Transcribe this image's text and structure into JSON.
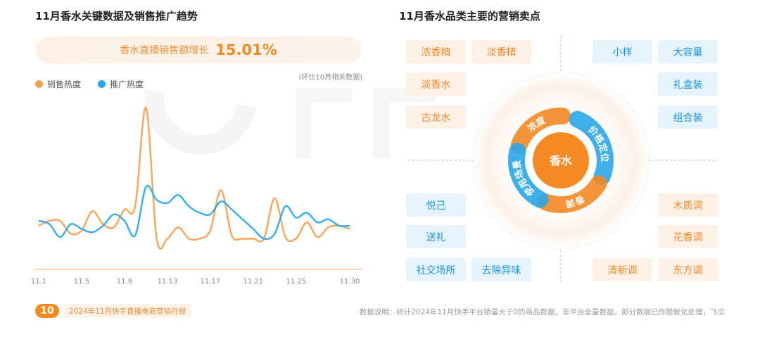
{
  "left": {
    "title": "11月香水关键数据及销售推广趋势",
    "banner": {
      "label": "香水直播销售额增长",
      "value": "15.01%"
    },
    "note": "(环比10月相关数据)"
  },
  "chart_data": {
    "type": "line",
    "title": "",
    "xlabel": "",
    "ylabel": "",
    "x": [
      "11.1",
      "11.2",
      "11.3",
      "11.4",
      "11.5",
      "11.6",
      "11.7",
      "11.8",
      "11.9",
      "11.10",
      "11.11",
      "11.12",
      "11.13",
      "11.14",
      "11.15",
      "11.16",
      "11.17",
      "11.18",
      "11.19",
      "11.20",
      "11.21",
      "11.22",
      "11.23",
      "11.24",
      "11.25",
      "11.26",
      "11.27",
      "11.28",
      "11.29",
      "11.30"
    ],
    "xticks": [
      "11.1",
      "11.5",
      "11.9",
      "11.13",
      "11.17",
      "11.21",
      "11.25",
      "11.30"
    ],
    "ylim": [
      0,
      100
    ],
    "grid": false,
    "legend_placement": "top-left",
    "series": [
      {
        "name": "销售热度",
        "color": "#f5a04a",
        "values": [
          27,
          30,
          30,
          22,
          24,
          36,
          28,
          26,
          37,
          39,
          100,
          19,
          19,
          26,
          19,
          19,
          24,
          49,
          21,
          19,
          19,
          19,
          44,
          20,
          19,
          29,
          20,
          26,
          27,
          25
        ]
      },
      {
        "name": "推广热度",
        "color": "#2aa6e8",
        "values": [
          30,
          28,
          20,
          28,
          25,
          23,
          27,
          34,
          30,
          21,
          51,
          43,
          41,
          46,
          39,
          35,
          34,
          42,
          37,
          31,
          25,
          19,
          22,
          39,
          32,
          35,
          29,
          31,
          27,
          27
        ]
      }
    ]
  },
  "right": {
    "title": "11月香水品类主要的营销卖点",
    "center": "香水",
    "ring": [
      "浓度",
      "价格定位",
      "香调",
      "使用场景"
    ],
    "tags_tl": [
      "浓香精",
      "淡香精",
      "淡香水",
      "古龙水"
    ],
    "tags_tr": [
      "小样",
      "大容量",
      "礼盒装",
      "组合装"
    ],
    "tags_bl": [
      "悦己",
      "送礼",
      "社交场所",
      "去除异味"
    ],
    "tags_br": [
      "木质调",
      "花香调",
      "清新调",
      "东方调"
    ],
    "colors": {
      "orange": "#f08a24",
      "blue": "#1a93dc"
    }
  },
  "footer": {
    "page": "10",
    "report": "2024年11月快手直播电商营销月报",
    "note": "数据说明：统计2024年11月快手平台销量大于0的商品数据，非平台全量数据，部分数据已作脱敏化处理，飞瓜"
  }
}
